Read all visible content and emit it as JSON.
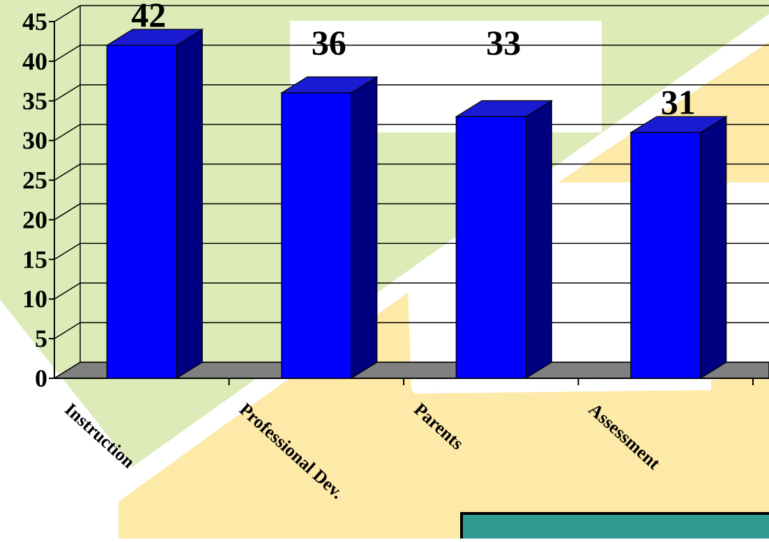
{
  "chart_data": {
    "type": "bar",
    "style": "3d-column",
    "categories": [
      "Instruction",
      "Professional Dev.",
      "Parents",
      "Assessment"
    ],
    "values": [
      42,
      36,
      33,
      31
    ],
    "data_labels": [
      "42",
      "36",
      "33",
      "31"
    ],
    "title": "",
    "xlabel": "",
    "ylabel": "",
    "ylim": [
      0,
      45
    ],
    "yticks": [
      0,
      5,
      10,
      15,
      20,
      25,
      30,
      35,
      40,
      45
    ],
    "ytick_labels": [
      "0",
      "5",
      "10",
      "15",
      "20",
      "25",
      "30",
      "35",
      "40",
      "45"
    ],
    "grid": true,
    "legend": "none",
    "colors": {
      "bar_front": "#0000ff",
      "bar_side": "#000080",
      "bar_top": "#1a1ad0",
      "floor": "#808080",
      "gridline": "#000000",
      "background_green": "#dcebb8",
      "background_yellow": "#fde9a8",
      "panel_teal": "#2e9a90"
    }
  }
}
